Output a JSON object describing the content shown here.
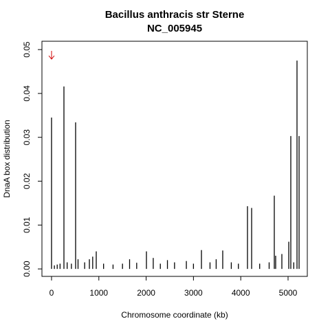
{
  "chart_data": {
    "type": "spike",
    "title": "Bacillus anthracis str Sterne",
    "subtitle": "NC_005945",
    "x_label": "Chromosome coordinate (kb)",
    "y_label": "DnaA box distribution",
    "color": "#000000",
    "x": [
      0,
      60,
      120,
      180,
      262,
      330,
      420,
      509,
      560,
      700,
      800,
      870,
      945,
      1100,
      1300,
      1500,
      1650,
      1800,
      2006,
      2150,
      2300,
      2450,
      2600,
      2850,
      3000,
      3169,
      3350,
      3480,
      3619,
      3800,
      3950,
      4142,
      4230,
      4400,
      4600,
      4709,
      4738,
      4869,
      5015,
      5058,
      5120,
      5189,
      5233
    ],
    "values": [
      0.0345,
      0.0008,
      0.001,
      0.0012,
      0.0416,
      0.0015,
      0.0012,
      0.0334,
      0.0022,
      0.0015,
      0.0022,
      0.0028,
      0.004,
      0.0012,
      0.001,
      0.0012,
      0.0022,
      0.0014,
      0.004,
      0.0025,
      0.0012,
      0.002,
      0.0015,
      0.0018,
      0.0012,
      0.0043,
      0.0015,
      0.0022,
      0.0042,
      0.0015,
      0.0012,
      0.0143,
      0.0139,
      0.0012,
      0.0015,
      0.0167,
      0.003,
      0.0034,
      0.0062,
      0.0303,
      0.0015,
      0.0475,
      0.0303
    ],
    "xlim": [
      -203,
      5407
    ],
    "ylim": [
      -0.0017,
      0.0519
    ],
    "xticks": [
      0,
      1000,
      2000,
      3000,
      4000,
      5000
    ],
    "yticks": [
      {
        "value": 0,
        "label": "0.00"
      },
      {
        "value": 0.01,
        "label": "0.01"
      },
      {
        "value": 0.02,
        "label": "0.02"
      },
      {
        "value": 0.03,
        "label": "0.03"
      },
      {
        "value": 0.04,
        "label": "0.04"
      },
      {
        "value": 0.05,
        "label": "0.05"
      }
    ]
  }
}
